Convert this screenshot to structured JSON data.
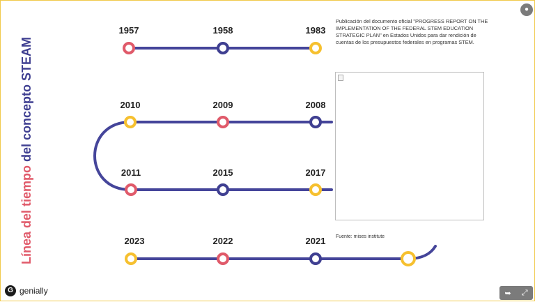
{
  "title": {
    "part1": "Línea del tiempo ",
    "part2": "del concepto STEAM"
  },
  "colors": {
    "pink": "#e05a6a",
    "navy": "#3f3f91",
    "yellow": "#f6c02f",
    "line": "#45459a"
  },
  "years": {
    "y1957": "1957",
    "y1958": "1958",
    "y1983": "1983",
    "y2010": "2010",
    "y2009": "2009",
    "y2008": "2008",
    "y2011": "2011",
    "y2015": "2015",
    "y2017": "2017",
    "y2023": "2023",
    "y2022": "2022",
    "y2021": "2021"
  },
  "info_text": "Publicación del documento oficial \"PROGRESS REPORT ON THE IMPLEMENTATION OF THE FEDERAL STEM EDUCATION STRATEGIC PLAN\" en Estados Unidos para dar rendición de cuentas de los presupuestos federales en programas STEM.",
  "source_text": "Fuente: mises institute",
  "brand": {
    "logo_letter": "G",
    "name": "genially"
  },
  "icons": {
    "share": "share-icon",
    "fullscreen": "fullscreen-icon",
    "user": "user-icon"
  }
}
